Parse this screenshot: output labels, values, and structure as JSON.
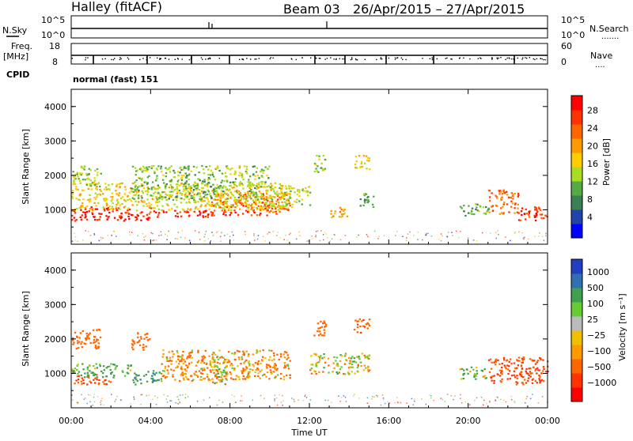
{
  "header": {
    "station": "Halley (fitACF)",
    "beam": "Beam 03",
    "date_range": "26/Apr/2015 – 27/Apr/2015"
  },
  "top_panels": {
    "nsky_label": "N.Sky",
    "nsky_ticks": [
      "10^5",
      "10^0"
    ],
    "nsearch_label": "N.Search",
    "nsearch_ticks": [
      "10^5",
      "10^0"
    ],
    "freq_label": "Freq.",
    "freq_unit": "[MHz]",
    "freq_ticks": [
      "18",
      "8"
    ],
    "nave_label": "Nave",
    "nave_ticks": [
      "60",
      "0"
    ],
    "cpid_label": "CPID",
    "cpid_value": "normal (fast) 151"
  },
  "colors": {
    "power": [
      "#0000ff",
      "#2244aa",
      "#3a7f55",
      "#55aa44",
      "#aadd22",
      "#ffcc00",
      "#ff9900",
      "#ff6600",
      "#ff3300",
      "#ff0000"
    ],
    "velocity": [
      "#2040c0",
      "#3070b0",
      "#40a050",
      "#66cc33",
      "#bbbbbb",
      "#f0c000",
      "#ff9900",
      "#ff6600",
      "#ff3300",
      "#ff0000"
    ]
  },
  "chart_data": [
    {
      "type": "heatmap",
      "quantity": "power",
      "ylabel": "Slant Range [km]",
      "ylim": [
        0,
        4500
      ],
      "yticks": [
        "1000",
        "2000",
        "3000",
        "4000"
      ],
      "xlim": [
        0,
        24
      ],
      "colorbar_label": "Power [dB]",
      "colorbar_ticks": [
        "4",
        "8",
        "12",
        "16",
        "20",
        "24",
        "28"
      ],
      "colorbar_range": [
        0,
        30
      ],
      "blobs": [
        {
          "t0": 0.0,
          "t1": 2.0,
          "r0": 700,
          "r1": 1100,
          "v": 28
        },
        {
          "t0": 2.0,
          "t1": 4.0,
          "r0": 700,
          "r1": 1100,
          "v": 26
        },
        {
          "t0": 4.0,
          "t1": 7.0,
          "r0": 800,
          "r1": 1000,
          "v": 27
        },
        {
          "t0": 7.0,
          "t1": 11.0,
          "r0": 850,
          "r1": 1500,
          "v": 24
        },
        {
          "t0": 0.0,
          "t1": 11.0,
          "r0": 1000,
          "r1": 1800,
          "v": 16
        },
        {
          "t0": 0.0,
          "t1": 1.5,
          "r0": 1700,
          "r1": 2300,
          "v": 13
        },
        {
          "t0": 3.0,
          "t1": 10.0,
          "r0": 1300,
          "r1": 2300,
          "v": 12
        },
        {
          "t0": 10.0,
          "t1": 12.0,
          "r0": 1100,
          "r1": 1700,
          "v": 14
        },
        {
          "t0": 12.2,
          "t1": 12.8,
          "r0": 2100,
          "r1": 2600,
          "v": 12
        },
        {
          "t0": 13.0,
          "t1": 14.0,
          "r0": 800,
          "r1": 1100,
          "v": 18
        },
        {
          "t0": 14.2,
          "t1": 15.0,
          "r0": 2200,
          "r1": 2600,
          "v": 16
        },
        {
          "t0": 14.5,
          "t1": 15.2,
          "r0": 1100,
          "r1": 1500,
          "v": 10
        },
        {
          "t0": 19.5,
          "t1": 21.0,
          "r0": 850,
          "r1": 1200,
          "v": 10
        },
        {
          "t0": 21.0,
          "t1": 22.5,
          "r0": 900,
          "r1": 1600,
          "v": 22
        },
        {
          "t0": 22.5,
          "t1": 24.0,
          "r0": 700,
          "r1": 1100,
          "v": 26
        }
      ]
    },
    {
      "type": "heatmap",
      "quantity": "velocity",
      "ylabel": "Slant Range [km]",
      "ylim": [
        0,
        4500
      ],
      "yticks": [
        "1000",
        "2000",
        "3000",
        "4000"
      ],
      "xlim": [
        0,
        24
      ],
      "xticks": [
        "00:00",
        "04:00",
        "08:00",
        "12:00",
        "16:00",
        "20:00",
        "00:00"
      ],
      "xlabel": "Time UT",
      "colorbar_label": "Velocity [m s⁻¹]",
      "colorbar_ticks": [
        "1000",
        "500",
        "100",
        "25",
        "−25",
        "−100",
        "−500",
        "−1000"
      ],
      "blobs": [
        {
          "t0": 0.0,
          "t1": 2.0,
          "r0": 700,
          "r1": 1000,
          "v": -500
        },
        {
          "t0": 0.0,
          "t1": 3.0,
          "r0": 900,
          "r1": 1300,
          "v": 150
        },
        {
          "t0": 3.0,
          "t1": 4.5,
          "r0": 700,
          "r1": 1100,
          "v": 400
        },
        {
          "t0": 4.5,
          "t1": 8.0,
          "r0": 800,
          "r1": 1700,
          "v": -100
        },
        {
          "t0": 7.0,
          "t1": 8.0,
          "r0": 700,
          "r1": 1500,
          "v": 10
        },
        {
          "t0": 8.0,
          "t1": 11.0,
          "r0": 850,
          "r1": 1700,
          "v": -80
        },
        {
          "t0": 0.0,
          "t1": 1.5,
          "r0": 1700,
          "r1": 2300,
          "v": -300
        },
        {
          "t0": 3.0,
          "t1": 4.0,
          "r0": 1700,
          "r1": 2200,
          "v": -300
        },
        {
          "t0": 12.0,
          "t1": 15.0,
          "r0": 1000,
          "r1": 1600,
          "v": 0
        },
        {
          "t0": 12.2,
          "t1": 12.8,
          "r0": 2100,
          "r1": 2600,
          "v": -300
        },
        {
          "t0": 14.2,
          "t1": 15.0,
          "r0": 2200,
          "r1": 2600,
          "v": -400
        },
        {
          "t0": 19.5,
          "t1": 21.0,
          "r0": 850,
          "r1": 1200,
          "v": 80
        },
        {
          "t0": 21.0,
          "t1": 24.0,
          "r0": 700,
          "r1": 1500,
          "v": -500
        }
      ]
    }
  ]
}
